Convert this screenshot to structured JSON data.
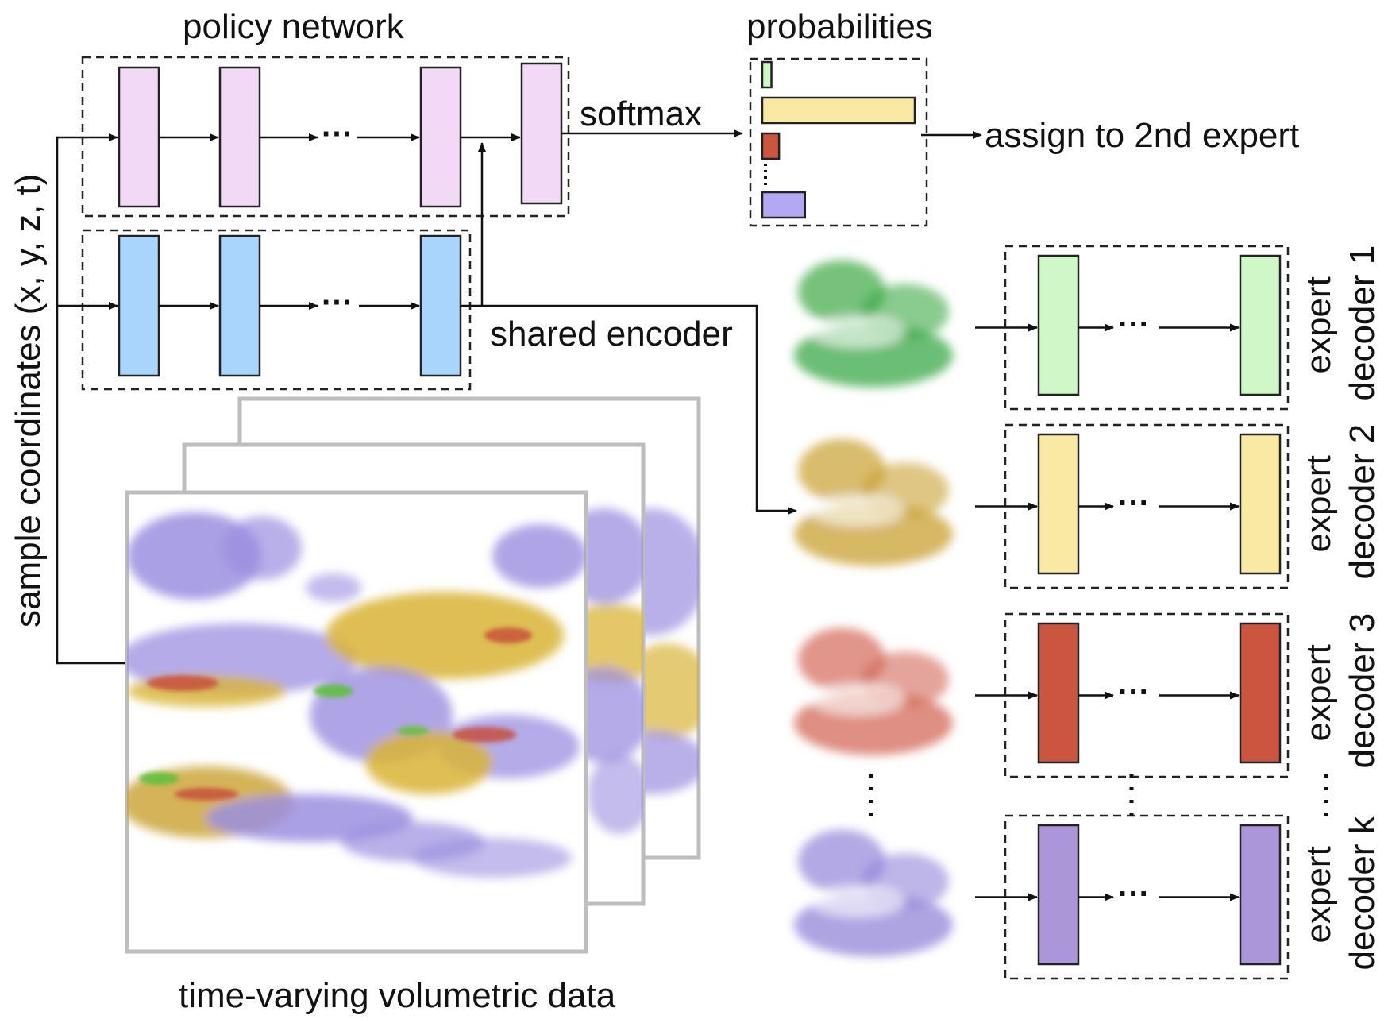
{
  "labels": {
    "policy_network": "policy network",
    "probabilities": "probabilities",
    "softmax": "softmax",
    "assign": "assign to 2nd expert",
    "shared_encoder": "shared encoder",
    "sample_coords": "sample coordinates (x, y, z, t)",
    "volumetric_data": "time-varying volumetric data",
    "ellipsis": "···"
  },
  "experts": [
    {
      "line1": "expert",
      "line2": "decoder 1",
      "color": "#cff7c8",
      "render_color": "#3aa845"
    },
    {
      "line1": "expert",
      "line2": "decoder 2",
      "color": "#f9e9a3",
      "render_color": "#c9a030"
    },
    {
      "line1": "expert",
      "line2": "decoder 3",
      "color": "#cc5540",
      "render_color": "#d46858"
    },
    {
      "line1": "expert",
      "line2": "decoder k",
      "color": "#ab96d9",
      "render_color": "#9385d8"
    }
  ],
  "colors": {
    "policy_layer": "#f2d9f6",
    "encoder_layer": "#a9d4fb",
    "volume_purple": "#9b8fe0",
    "volume_yellow": "#d9b436",
    "volume_red": "#c74a3a",
    "volume_green": "#5fbf3a"
  },
  "probabilities": [
    {
      "expert": 1,
      "value": 0.06,
      "color": "#cff7c8"
    },
    {
      "expert": 2,
      "value": 1.0,
      "color": "#f9e9a3"
    },
    {
      "expert": 3,
      "value": 0.11,
      "color": "#cc5540"
    },
    {
      "expert": "k",
      "value": 0.28,
      "color": "#b3a9f3"
    }
  ]
}
